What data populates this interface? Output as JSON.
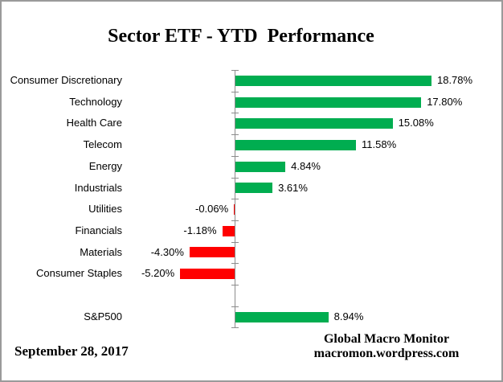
{
  "title": "Sector ETF - YTD  Performance",
  "footer": {
    "date": "September 28, 2017",
    "credit": [
      "Global Macro Monitor",
      "macromon.wordpress.com"
    ]
  },
  "colors": {
    "positive_bar": "#00AD50",
    "negative_bar": "#FF0000",
    "axis": "#8C8C8C",
    "text": "#000000",
    "border": "#9A9A9A"
  },
  "chart_data": {
    "type": "bar",
    "orientation": "horizontal",
    "title": "Sector ETF - YTD  Performance",
    "categories": [
      "Consumer Discretionary",
      "Technology",
      "Health Care",
      "Telecom",
      "Energy",
      "Industrials",
      "Utilities",
      "Financials",
      "Materials",
      "Consumer Staples",
      "S&P500"
    ],
    "values": [
      18.78,
      17.8,
      15.08,
      11.58,
      4.84,
      3.61,
      -0.06,
      -1.18,
      -4.3,
      -5.2,
      8.94
    ],
    "value_labels": [
      "18.78%",
      "17.80%",
      "15.08%",
      "11.58%",
      "4.84%",
      "3.61%",
      "-0.06%",
      "-1.18%",
      "-4.30%",
      "-5.20%",
      "8.94%"
    ],
    "gap_after_index": 9,
    "xlim": [
      -6,
      20
    ],
    "grid": false,
    "legend": false,
    "value_label_position": "bar-end"
  }
}
